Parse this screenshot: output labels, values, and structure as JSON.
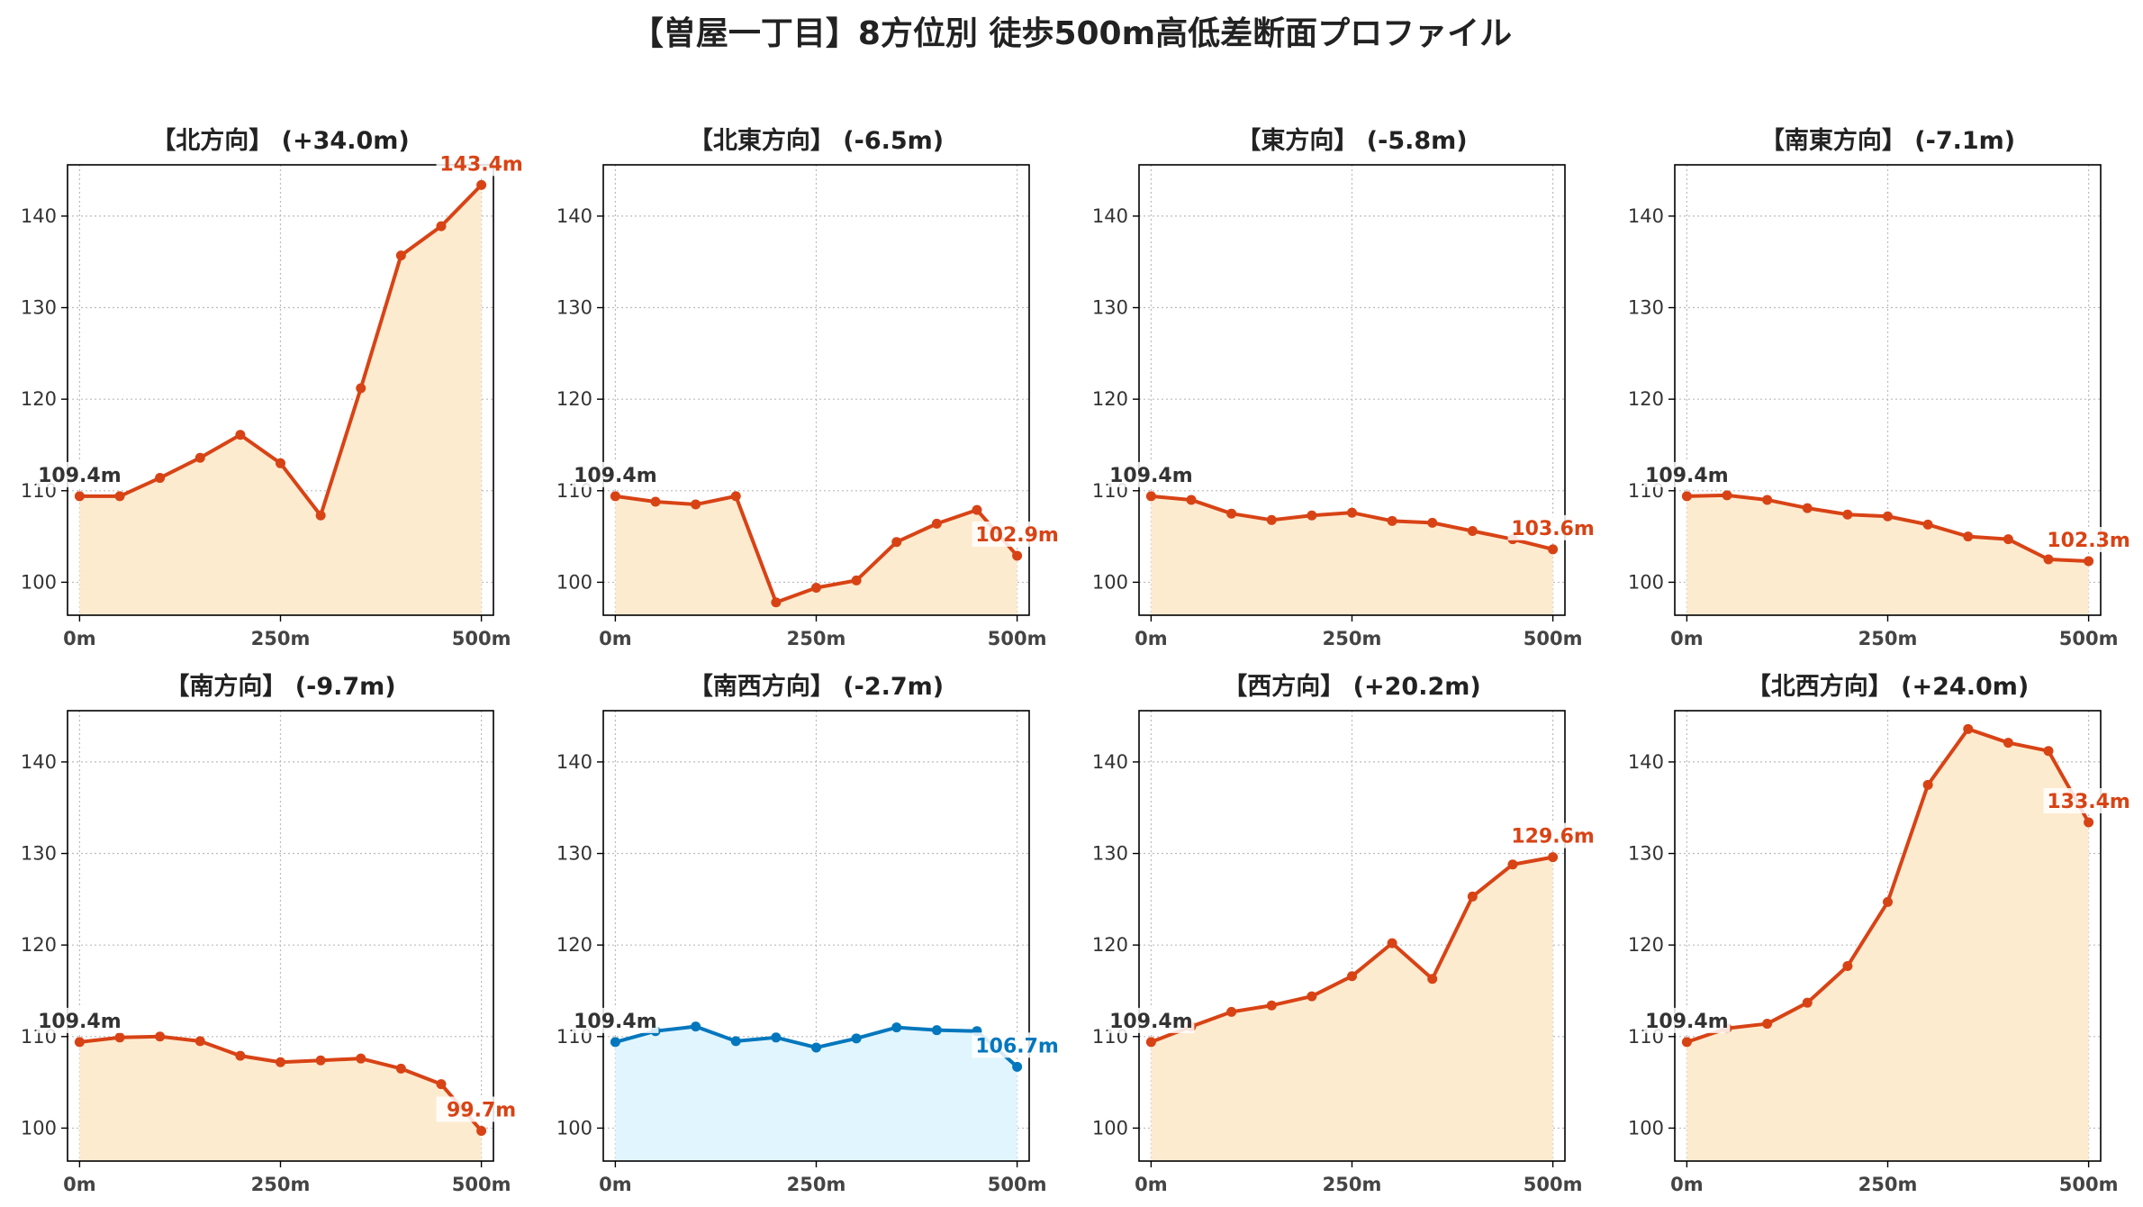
{
  "figure_title": "【曽屋一丁目】8方位別 徒歩500m高低差断面プロファイル",
  "colors": {
    "rise": "#d84315",
    "rise_fill": "#fdebd0",
    "fall": "#0277bd",
    "fall_fill": "#e1f5fe",
    "axis": "#000000",
    "grid": "#bbbbbb",
    "tick_text": "#333333",
    "start_label": "#333333"
  },
  "chart_data": [
    {
      "type": "area",
      "title": "【北方向】 (+34.0m)",
      "color_scheme": "rise",
      "x": [
        0,
        50,
        100,
        150,
        200,
        250,
        300,
        350,
        400,
        450,
        500
      ],
      "values": [
        109.4,
        109.4,
        111.4,
        113.6,
        116.1,
        113.0,
        107.3,
        121.2,
        135.7,
        138.9,
        143.4
      ],
      "xticks": [
        "0m",
        "250m",
        "500m"
      ],
      "xtick_values": [
        0,
        250,
        500
      ],
      "yticks": [
        100,
        110,
        120,
        130,
        140
      ],
      "ylim": [
        96.4,
        145.6
      ],
      "xlim": [
        -15,
        515
      ],
      "grid": true,
      "start_label": "109.4m",
      "end_label": "143.4m",
      "end_label_pos": "above"
    },
    {
      "type": "area",
      "title": "【北東方向】 (-6.5m)",
      "color_scheme": "rise",
      "x": [
        0,
        50,
        100,
        150,
        200,
        250,
        300,
        350,
        400,
        450,
        500
      ],
      "values": [
        109.4,
        108.8,
        108.5,
        109.4,
        97.8,
        99.4,
        100.2,
        104.4,
        106.4,
        107.9,
        102.9
      ],
      "xticks": [
        "0m",
        "250m",
        "500m"
      ],
      "xtick_values": [
        0,
        250,
        500
      ],
      "yticks": [
        100,
        110,
        120,
        130,
        140
      ],
      "ylim": [
        96.4,
        145.6
      ],
      "xlim": [
        -15,
        515
      ],
      "grid": true,
      "start_label": "109.4m",
      "end_label": "102.9m",
      "end_label_pos": "above"
    },
    {
      "type": "area",
      "title": "【東方向】 (-5.8m)",
      "color_scheme": "rise",
      "x": [
        0,
        50,
        100,
        150,
        200,
        250,
        300,
        350,
        400,
        450,
        500
      ],
      "values": [
        109.4,
        109.0,
        107.5,
        106.8,
        107.3,
        107.6,
        106.7,
        106.5,
        105.6,
        104.7,
        103.6
      ],
      "xticks": [
        "0m",
        "250m",
        "500m"
      ],
      "xtick_values": [
        0,
        250,
        500
      ],
      "yticks": [
        100,
        110,
        120,
        130,
        140
      ],
      "ylim": [
        96.4,
        145.6
      ],
      "xlim": [
        -15,
        515
      ],
      "grid": true,
      "start_label": "109.4m",
      "end_label": "103.6m",
      "end_label_pos": "above"
    },
    {
      "type": "area",
      "title": "【南東方向】 (-7.1m)",
      "color_scheme": "rise",
      "x": [
        0,
        50,
        100,
        150,
        200,
        250,
        300,
        350,
        400,
        450,
        500
      ],
      "values": [
        109.4,
        109.5,
        109.0,
        108.1,
        107.4,
        107.2,
        106.3,
        105.0,
        104.7,
        102.5,
        102.3
      ],
      "xticks": [
        "0m",
        "250m",
        "500m"
      ],
      "xtick_values": [
        0,
        250,
        500
      ],
      "yticks": [
        100,
        110,
        120,
        130,
        140
      ],
      "ylim": [
        96.4,
        145.6
      ],
      "xlim": [
        -15,
        515
      ],
      "grid": true,
      "start_label": "109.4m",
      "end_label": "102.3m",
      "end_label_pos": "above"
    },
    {
      "type": "area",
      "title": "【南方向】 (-9.7m)",
      "color_scheme": "rise",
      "x": [
        0,
        50,
        100,
        150,
        200,
        250,
        300,
        350,
        400,
        450,
        500
      ],
      "values": [
        109.4,
        109.9,
        110.0,
        109.5,
        107.9,
        107.2,
        107.4,
        107.6,
        106.5,
        104.8,
        99.7
      ],
      "xticks": [
        "0m",
        "250m",
        "500m"
      ],
      "xtick_values": [
        0,
        250,
        500
      ],
      "yticks": [
        100,
        110,
        120,
        130,
        140
      ],
      "ylim": [
        96.4,
        145.6
      ],
      "xlim": [
        -15,
        515
      ],
      "grid": true,
      "start_label": "109.4m",
      "end_label": "99.7m",
      "end_label_pos": "above"
    },
    {
      "type": "area",
      "title": "【南西方向】 (-2.7m)",
      "color_scheme": "fall",
      "x": [
        0,
        50,
        100,
        150,
        200,
        250,
        300,
        350,
        400,
        450,
        500
      ],
      "values": [
        109.4,
        110.6,
        111.1,
        109.5,
        109.9,
        108.8,
        109.8,
        111.0,
        110.7,
        110.6,
        106.7
      ],
      "xticks": [
        "0m",
        "250m",
        "500m"
      ],
      "xtick_values": [
        0,
        250,
        500
      ],
      "yticks": [
        100,
        110,
        120,
        130,
        140
      ],
      "ylim": [
        96.4,
        145.6
      ],
      "xlim": [
        -15,
        515
      ],
      "grid": true,
      "start_label": "109.4m",
      "end_label": "106.7m",
      "end_label_pos": "above"
    },
    {
      "type": "area",
      "title": "【西方向】 (+20.2m)",
      "color_scheme": "rise",
      "x": [
        0,
        50,
        100,
        150,
        200,
        250,
        300,
        350,
        400,
        450,
        500
      ],
      "values": [
        109.4,
        111.1,
        112.7,
        113.4,
        114.4,
        116.6,
        120.2,
        116.3,
        125.3,
        128.8,
        129.6
      ],
      "xticks": [
        "0m",
        "250m",
        "500m"
      ],
      "xtick_values": [
        0,
        250,
        500
      ],
      "yticks": [
        100,
        110,
        120,
        130,
        140
      ],
      "ylim": [
        96.4,
        145.6
      ],
      "xlim": [
        -15,
        515
      ],
      "grid": true,
      "start_label": "109.4m",
      "end_label": "129.6m",
      "end_label_pos": "above"
    },
    {
      "type": "area",
      "title": "【北西方向】 (+24.0m)",
      "color_scheme": "rise",
      "x": [
        0,
        50,
        100,
        150,
        200,
        250,
        300,
        350,
        400,
        450,
        500
      ],
      "values": [
        109.4,
        110.9,
        111.4,
        113.7,
        117.7,
        124.7,
        137.5,
        143.6,
        142.1,
        141.2,
        133.4
      ],
      "xticks": [
        "0m",
        "250m",
        "500m"
      ],
      "xtick_values": [
        0,
        250,
        500
      ],
      "yticks": [
        100,
        110,
        120,
        130,
        140
      ],
      "ylim": [
        96.4,
        145.6
      ],
      "xlim": [
        -15,
        515
      ],
      "grid": true,
      "start_label": "109.4m",
      "end_label": "133.4m",
      "end_label_pos": "above"
    }
  ]
}
